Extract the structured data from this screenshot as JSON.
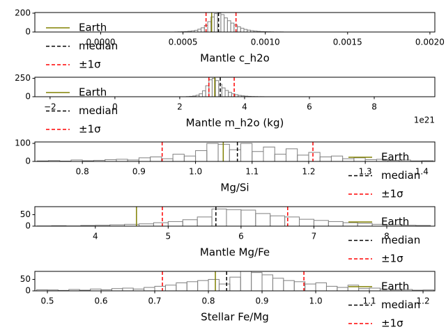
{
  "chart_data": [
    {
      "type": "histogram",
      "xlabel": "Mantle c_h2o",
      "color": "#808080",
      "legend": "lower left",
      "bins": [
        0.00045,
        0.00047,
        0.00049,
        0.00051,
        0.00053,
        0.00055,
        0.00057,
        0.00059,
        0.00061,
        0.00063,
        0.00065,
        0.00067,
        0.00069,
        0.00071,
        0.00073,
        0.00075,
        0.00077,
        0.00079,
        0.00081,
        0.00083,
        0.00085,
        0.00087,
        0.00089,
        0.00091,
        0.00093,
        0.00095,
        0.00097,
        0.00099,
        0.00101,
        0.00103,
        0.00105,
        0.00107,
        0.00109,
        0.00111
      ],
      "values": [
        1,
        2,
        3,
        5,
        8,
        12,
        18,
        30,
        45,
        70,
        110,
        160,
        195,
        200,
        185,
        150,
        120,
        95,
        75,
        55,
        40,
        28,
        20,
        14,
        10,
        7,
        5,
        4,
        3,
        2,
        1,
        1,
        1
      ],
      "xlim": [
        -0.0004,
        0.00203
      ],
      "xticks": [
        {
          "value": 0,
          "label": "0.0000"
        },
        0.0005,
        {
          "value": 0.001,
          "label": "0.0010"
        },
        0.0015,
        {
          "value": 0.002,
          "label": "0.0020"
        }
      ],
      "ylim": [
        0,
        207
      ],
      "yticks": [
        0,
        200
      ],
      "series": [
        {
          "name": "Earth",
          "color": "#808000",
          "dashed": false,
          "values": [
            0.000674
          ]
        },
        {
          "name": "median",
          "color": "#000000",
          "dashed": true,
          "values": [
            0.000716
          ]
        },
        {
          "name": "±1σ",
          "color": "#ff0000",
          "dashed": true,
          "values": [
            0.00064,
            0.000822
          ]
        }
      ]
    },
    {
      "type": "histogram",
      "xlabel": "Mantle m_h2o (kg)",
      "offset_label": "1e21",
      "color": "#808080",
      "legend": "lower left",
      "bins": [
        2.2,
        2.3,
        2.4,
        2.5,
        2.6,
        2.7,
        2.8,
        2.9,
        3.0,
        3.1,
        3.2,
        3.3,
        3.4,
        3.5,
        3.6,
        3.7,
        3.8,
        3.9,
        4.0,
        4.1,
        4.2,
        4.3,
        4.4,
        4.5,
        4.6
      ],
      "values": [
        2,
        5,
        10,
        20,
        40,
        80,
        150,
        230,
        250,
        220,
        170,
        120,
        85,
        60,
        40,
        28,
        18,
        12,
        8,
        5,
        3,
        2,
        1,
        1
      ],
      "xlim": [
        -2.47,
        9.87
      ],
      "xticks": [
        {
          "value": -2,
          "label": "−2"
        },
        0,
        2,
        4,
        6,
        8
      ],
      "ylim": [
        0,
        265
      ],
      "yticks": [
        0,
        250
      ],
      "series": [
        {
          "name": "Earth",
          "color": "#808000",
          "dashed": false,
          "values": [
            3.08
          ]
        },
        {
          "name": "median",
          "color": "#000000",
          "dashed": true,
          "values": [
            3.25
          ]
        },
        {
          "name": "±1σ",
          "color": "#ff0000",
          "dashed": true,
          "values": [
            2.9,
            3.68
          ]
        }
      ]
    },
    {
      "type": "histogram",
      "xlabel": "Mg/Si",
      "color": "#808080",
      "legend": "lower right",
      "bins": [
        0.72,
        0.74,
        0.76,
        0.78,
        0.8,
        0.82,
        0.84,
        0.86,
        0.88,
        0.9,
        0.92,
        0.94,
        0.96,
        0.98,
        1.0,
        1.02,
        1.04,
        1.06,
        1.08,
        1.1,
        1.12,
        1.14,
        1.16,
        1.18,
        1.2,
        1.22,
        1.24,
        1.26,
        1.28,
        1.3,
        1.32,
        1.34,
        1.36,
        1.38,
        1.4,
        1.42
      ],
      "values": [
        3,
        5,
        2,
        8,
        4,
        6,
        10,
        12,
        8,
        20,
        25,
        15,
        40,
        30,
        60,
        100,
        95,
        65,
        100,
        55,
        80,
        40,
        70,
        35,
        50,
        25,
        30,
        15,
        20,
        10,
        12,
        6,
        8,
        3,
        4
      ],
      "xlim": [
        0.716,
        1.423
      ],
      "xticks": [
        0.8,
        0.9,
        {
          "value": 1,
          "label": "1.0"
        },
        1.1,
        1.2,
        1.3,
        1.4
      ],
      "ylim": [
        0,
        108
      ],
      "yticks": [
        0,
        100
      ],
      "series": [
        {
          "name": "Earth",
          "color": "#808000",
          "dashed": false,
          "values": [
            1.049
          ]
        },
        {
          "name": "median",
          "color": "#000000",
          "dashed": true,
          "values": [
            1.074
          ]
        },
        {
          "name": "±1σ",
          "color": "#ff0000",
          "dashed": true,
          "values": [
            0.941,
            1.2075
          ]
        }
      ]
    },
    {
      "type": "histogram",
      "xlabel": "Mantle Mg/Fe",
      "color": "#808080",
      "legend": "lower right",
      "bins": [
        3.2,
        3.4,
        3.6,
        3.8,
        4.0,
        4.2,
        4.4,
        4.6,
        4.8,
        5.0,
        5.2,
        5.4,
        5.6,
        5.8,
        6.0,
        6.2,
        6.4,
        6.6,
        6.8,
        7.0,
        7.2,
        7.4,
        7.6,
        7.8,
        8.0,
        8.2,
        8.4,
        8.6
      ],
      "values": [
        1,
        2,
        1,
        3,
        4,
        6,
        8,
        10,
        15,
        20,
        28,
        40,
        75,
        72,
        70,
        55,
        45,
        40,
        30,
        25,
        20,
        15,
        12,
        8,
        6,
        4,
        3
      ],
      "xlim": [
        3.17,
        8.66
      ],
      "xticks": [
        4,
        5,
        6,
        7,
        8
      ],
      "ylim": [
        0,
        85
      ],
      "yticks": [
        0,
        50
      ],
      "series": [
        {
          "name": "Earth",
          "color": "#808000",
          "dashed": false,
          "values": [
            4.565
          ]
        },
        {
          "name": "median",
          "color": "#000000",
          "dashed": true,
          "values": [
            5.655
          ]
        },
        {
          "name": "±1σ",
          "color": "#ff0000",
          "dashed": true,
          "values": [
            4.92,
            6.64
          ]
        }
      ]
    },
    {
      "type": "histogram",
      "xlabel": "Stellar Fe/Mg",
      "color": "#808080",
      "legend": "lower right",
      "bins": [
        0.48,
        0.5,
        0.52,
        0.54,
        0.56,
        0.58,
        0.6,
        0.62,
        0.64,
        0.66,
        0.68,
        0.7,
        0.72,
        0.74,
        0.76,
        0.78,
        0.8,
        0.82,
        0.84,
        0.86,
        0.88,
        0.9,
        0.92,
        0.94,
        0.96,
        0.98,
        1.0,
        1.02,
        1.04,
        1.06,
        1.08,
        1.1,
        1.12,
        1.14,
        1.16,
        1.18,
        1.2,
        1.22
      ],
      "values": [
        5,
        4,
        2,
        6,
        3,
        8,
        5,
        10,
        12,
        8,
        15,
        20,
        25,
        35,
        40,
        45,
        50,
        30,
        60,
        85,
        80,
        70,
        55,
        45,
        40,
        30,
        35,
        20,
        15,
        25,
        10,
        12,
        8,
        5,
        6,
        3,
        4
      ],
      "xlim": [
        0.4766,
        1.222
      ],
      "xticks": [
        0.5,
        0.6,
        0.7,
        0.8,
        0.9,
        {
          "value": 1,
          "label": "1.0"
        },
        1.1,
        1.2
      ],
      "ylim": [
        0,
        85
      ],
      "yticks": [
        0,
        50
      ],
      "series": [
        {
          "name": "Earth",
          "color": "#808000",
          "dashed": false,
          "values": [
            0.813
          ]
        },
        {
          "name": "median",
          "color": "#000000",
          "dashed": true,
          "values": [
            0.834
          ]
        },
        {
          "name": "±1σ",
          "color": "#ff0000",
          "dashed": true,
          "values": [
            0.7143,
            0.978
          ]
        }
      ]
    }
  ]
}
